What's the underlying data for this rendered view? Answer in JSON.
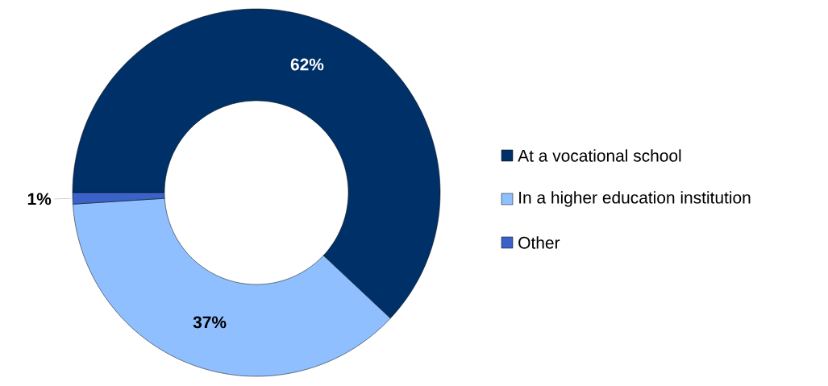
{
  "chart_data": {
    "type": "donut",
    "categories": [
      "At a vocational school",
      "In a higher education institution",
      "Other"
    ],
    "values": [
      62,
      37,
      1
    ],
    "colors": [
      "#003068",
      "#8fbfff",
      "#3a62c8"
    ],
    "value_labels": [
      "62%",
      "37%",
      "1%"
    ],
    "legend": "right"
  }
}
